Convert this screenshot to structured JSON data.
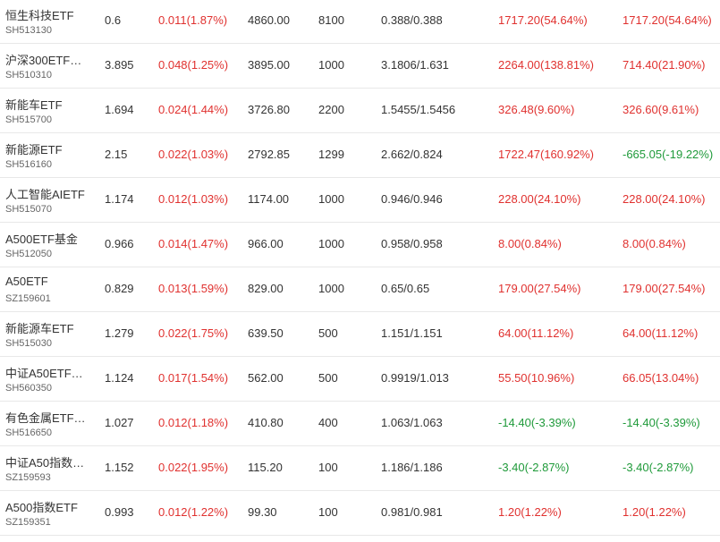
{
  "colors": {
    "up": "#e0312f",
    "down": "#1f9a3a"
  },
  "rows": [
    {
      "name": "恒生科技ETF",
      "code": "SH513130",
      "price": "0.6",
      "change": "0.011(1.87%)",
      "change_dir": "up",
      "market_value": "4860.00",
      "quantity": "8100",
      "cost": "0.388/0.388",
      "pnl": "1717.20(54.64%)",
      "pnl_dir": "up",
      "day_pnl": "1717.20(54.64%)",
      "day_pnl_dir": "up"
    },
    {
      "name": "沪深300ETF…",
      "code": "SH510310",
      "price": "3.895",
      "change": "0.048(1.25%)",
      "change_dir": "up",
      "market_value": "3895.00",
      "quantity": "1000",
      "cost": "3.1806/1.631",
      "pnl": "2264.00(138.81%)",
      "pnl_dir": "up",
      "day_pnl": "714.40(21.90%)",
      "day_pnl_dir": "up"
    },
    {
      "name": "新能车ETF",
      "code": "SH515700",
      "price": "1.694",
      "change": "0.024(1.44%)",
      "change_dir": "up",
      "market_value": "3726.80",
      "quantity": "2200",
      "cost": "1.5455/1.5456",
      "pnl": "326.48(9.60%)",
      "pnl_dir": "up",
      "day_pnl": "326.60(9.61%)",
      "day_pnl_dir": "up"
    },
    {
      "name": "新能源ETF",
      "code": "SH516160",
      "price": "2.15",
      "change": "0.022(1.03%)",
      "change_dir": "up",
      "market_value": "2792.85",
      "quantity": "1299",
      "cost": "2.662/0.824",
      "pnl": "1722.47(160.92%)",
      "pnl_dir": "up",
      "day_pnl": "-665.05(-19.22%)",
      "day_pnl_dir": "down"
    },
    {
      "name": "人工智能AIETF",
      "code": "SH515070",
      "price": "1.174",
      "change": "0.012(1.03%)",
      "change_dir": "up",
      "market_value": "1174.00",
      "quantity": "1000",
      "cost": "0.946/0.946",
      "pnl": "228.00(24.10%)",
      "pnl_dir": "up",
      "day_pnl": "228.00(24.10%)",
      "day_pnl_dir": "up"
    },
    {
      "name": "A500ETF基金",
      "code": "SH512050",
      "price": "0.966",
      "change": "0.014(1.47%)",
      "change_dir": "up",
      "market_value": "966.00",
      "quantity": "1000",
      "cost": "0.958/0.958",
      "pnl": "8.00(0.84%)",
      "pnl_dir": "up",
      "day_pnl": "8.00(0.84%)",
      "day_pnl_dir": "up"
    },
    {
      "name": "A50ETF",
      "code": "SZ159601",
      "price": "0.829",
      "change": "0.013(1.59%)",
      "change_dir": "up",
      "market_value": "829.00",
      "quantity": "1000",
      "cost": "0.65/0.65",
      "pnl": "179.00(27.54%)",
      "pnl_dir": "up",
      "day_pnl": "179.00(27.54%)",
      "day_pnl_dir": "up"
    },
    {
      "name": "新能源车ETF",
      "code": "SH515030",
      "price": "1.279",
      "change": "0.022(1.75%)",
      "change_dir": "up",
      "market_value": "639.50",
      "quantity": "500",
      "cost": "1.151/1.151",
      "pnl": "64.00(11.12%)",
      "pnl_dir": "up",
      "day_pnl": "64.00(11.12%)",
      "day_pnl_dir": "up"
    },
    {
      "name": "中证A50ETF…",
      "code": "SH560350",
      "price": "1.124",
      "change": "0.017(1.54%)",
      "change_dir": "up",
      "market_value": "562.00",
      "quantity": "500",
      "cost": "0.9919/1.013",
      "pnl": "55.50(10.96%)",
      "pnl_dir": "up",
      "day_pnl": "66.05(13.04%)",
      "day_pnl_dir": "up"
    },
    {
      "name": "有色金属ETF…",
      "code": "SH516650",
      "price": "1.027",
      "change": "0.012(1.18%)",
      "change_dir": "up",
      "market_value": "410.80",
      "quantity": "400",
      "cost": "1.063/1.063",
      "pnl": "-14.40(-3.39%)",
      "pnl_dir": "down",
      "day_pnl": "-14.40(-3.39%)",
      "day_pnl_dir": "down"
    },
    {
      "name": "中证A50指数…",
      "code": "SZ159593",
      "price": "1.152",
      "change": "0.022(1.95%)",
      "change_dir": "up",
      "market_value": "115.20",
      "quantity": "100",
      "cost": "1.186/1.186",
      "pnl": "-3.40(-2.87%)",
      "pnl_dir": "down",
      "day_pnl": "-3.40(-2.87%)",
      "day_pnl_dir": "down"
    },
    {
      "name": "A500指数ETF",
      "code": "SZ159351",
      "price": "0.993",
      "change": "0.012(1.22%)",
      "change_dir": "up",
      "market_value": "99.30",
      "quantity": "100",
      "cost": "0.981/0.981",
      "pnl": "1.20(1.22%)",
      "pnl_dir": "up",
      "day_pnl": "1.20(1.22%)",
      "day_pnl_dir": "up"
    }
  ]
}
